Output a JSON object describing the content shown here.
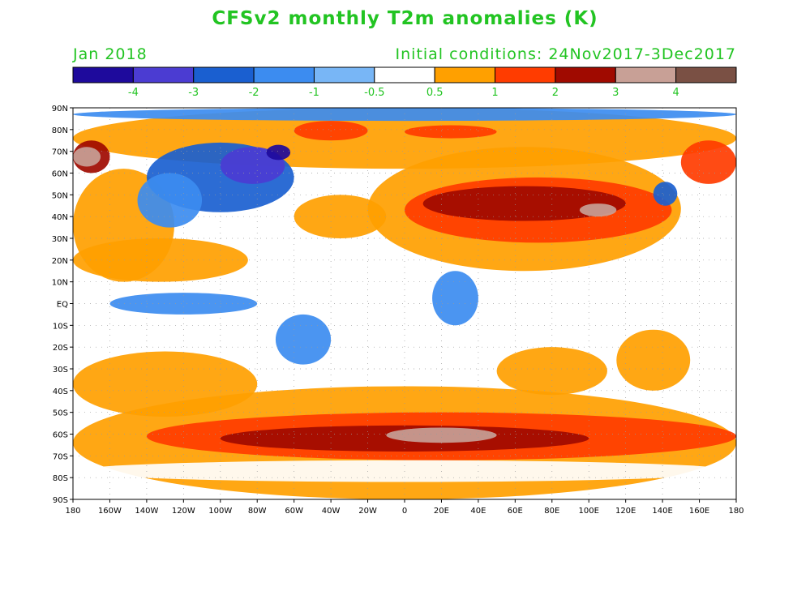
{
  "title": "CFSv2 monthly T2m anomalies (K)",
  "subtitle_left": "Jan 2018",
  "subtitle_right": "Initial conditions: 24Nov2017-3Dec2017",
  "text_color": "#22c422",
  "legend": {
    "bins": [
      {
        "color": "#1e0a9c"
      },
      {
        "color": "#4b3cd2"
      },
      {
        "color": "#1a5fd0"
      },
      {
        "color": "#3c8cf0"
      },
      {
        "color": "#78b6f6"
      },
      {
        "color": "#ffffff"
      },
      {
        "color": "#ffa000"
      },
      {
        "color": "#ff3c00"
      },
      {
        "color": "#a00a00"
      },
      {
        "color": "#c8a096"
      },
      {
        "color": "#7a5044"
      }
    ],
    "labels": [
      "-4",
      "-3",
      "-2",
      "-1",
      "-0.5",
      "0.5",
      "1",
      "2",
      "3",
      "4"
    ]
  },
  "map": {
    "lat_ticks": [
      "90N",
      "80N",
      "70N",
      "60N",
      "50N",
      "40N",
      "30N",
      "20N",
      "10N",
      "EQ",
      "10S",
      "20S",
      "30S",
      "40S",
      "50S",
      "60S",
      "70S",
      "80S",
      "90S"
    ],
    "lon_ticks": [
      "180",
      "160W",
      "140W",
      "120W",
      "100W",
      "80W",
      "60W",
      "40W",
      "20W",
      "0",
      "20E",
      "40E",
      "60E",
      "80E",
      "100E",
      "120E",
      "140E",
      "160E",
      "180"
    ],
    "anomaly_regions": [
      {
        "name": "northern-ocean-warm",
        "level": 1,
        "lon": [
          -180,
          180
        ],
        "lat": [
          62,
          90
        ]
      },
      {
        "name": "arctic-cold-strip",
        "level": -1,
        "lon": [
          -180,
          180
        ],
        "lat": [
          84,
          90
        ]
      },
      {
        "name": "north-pacific-warm",
        "level": 1,
        "lon": [
          -180,
          -125
        ],
        "lat": [
          10,
          62
        ]
      },
      {
        "name": "tropical-pacific-warm",
        "level": 1,
        "lon": [
          -180,
          -85
        ],
        "lat": [
          10,
          30
        ]
      },
      {
        "name": "south-pacific-warm",
        "level": 1,
        "lon": [
          -180,
          -80
        ],
        "lat": [
          -52,
          -22
        ]
      },
      {
        "name": "indian-ocean-warm",
        "level": 1,
        "lon": [
          50,
          110
        ],
        "lat": [
          -42,
          -20
        ]
      },
      {
        "name": "southern-ocean-warm",
        "level": 1,
        "lon": [
          -180,
          180
        ],
        "lat": [
          -90,
          -38
        ]
      },
      {
        "name": "north-atlantic-warm",
        "level": 1,
        "lon": [
          -60,
          -10
        ],
        "lat": [
          30,
          50
        ]
      },
      {
        "name": "australia-warm",
        "level": 1,
        "lon": [
          115,
          155
        ],
        "lat": [
          -40,
          -12
        ]
      },
      {
        "name": "eurasia-warm",
        "level": 1,
        "lon": [
          -20,
          150
        ],
        "lat": [
          15,
          72
        ]
      },
      {
        "name": "eurasia-strong-warm",
        "level": 2,
        "lon": [
          0,
          145
        ],
        "lat": [
          28,
          58
        ]
      },
      {
        "name": "central-asia-very-warm",
        "level": 3,
        "lon": [
          10,
          120
        ],
        "lat": [
          38,
          54
        ]
      },
      {
        "name": "mongolia-extreme-warm",
        "level": 4,
        "lon": [
          95,
          115
        ],
        "lat": [
          40,
          46
        ]
      },
      {
        "name": "east-siberia-warm",
        "level": 2,
        "lon": [
          150,
          180
        ],
        "lat": [
          55,
          75
        ]
      },
      {
        "name": "alaska-warm",
        "level": 3,
        "lon": [
          -180,
          -160
        ],
        "lat": [
          60,
          75
        ]
      },
      {
        "name": "alaska-extreme-warm",
        "level": 4,
        "lon": [
          -180,
          -165
        ],
        "lat": [
          63,
          72
        ]
      },
      {
        "name": "greenland-warm",
        "level": 2,
        "lon": [
          -60,
          -20
        ],
        "lat": [
          75,
          84
        ]
      },
      {
        "name": "barents-warm",
        "level": 2,
        "lon": [
          0,
          50
        ],
        "lat": [
          76,
          82
        ]
      },
      {
        "name": "north-america-cold",
        "level": -2,
        "lon": [
          -140,
          -60
        ],
        "lat": [
          42,
          74
        ]
      },
      {
        "name": "north-america-cold-core",
        "level": -3,
        "lon": [
          -100,
          -65
        ],
        "lat": [
          55,
          72
        ]
      },
      {
        "name": "baffin-extreme-cold",
        "level": -4,
        "lon": [
          -75,
          -62
        ],
        "lat": [
          66,
          73
        ]
      },
      {
        "name": "western-canada-cold",
        "level": -1,
        "lon": [
          -145,
          -110
        ],
        "lat": [
          35,
          60
        ]
      },
      {
        "name": "tropical-pacific-cold",
        "level": -1,
        "lon": [
          -160,
          -80
        ],
        "lat": [
          -5,
          5
        ]
      },
      {
        "name": "south-america-cold",
        "level": -1,
        "lon": [
          -70,
          -40
        ],
        "lat": [
          -28,
          -5
        ]
      },
      {
        "name": "east-africa-cold",
        "level": -1,
        "lon": [
          15,
          40
        ],
        "lat": [
          -10,
          15
        ]
      },
      {
        "name": "sakhalin-cold",
        "level": -2,
        "lon": [
          135,
          148
        ],
        "lat": [
          45,
          56
        ]
      },
      {
        "name": "southern-ocean-ring-warm",
        "level": 2,
        "lon": [
          -140,
          180
        ],
        "lat": [
          -72,
          -50
        ]
      },
      {
        "name": "southern-ocean-very-warm",
        "level": 3,
        "lon": [
          -100,
          100
        ],
        "lat": [
          -68,
          -56
        ]
      },
      {
        "name": "southern-ocean-extreme-warm",
        "level": 4,
        "lon": [
          -10,
          50
        ],
        "lat": [
          -64,
          -57
        ]
      },
      {
        "name": "antarctica-mixed",
        "level": 0,
        "lon": [
          -180,
          180
        ],
        "lat": [
          -82,
          -72
        ]
      }
    ]
  }
}
